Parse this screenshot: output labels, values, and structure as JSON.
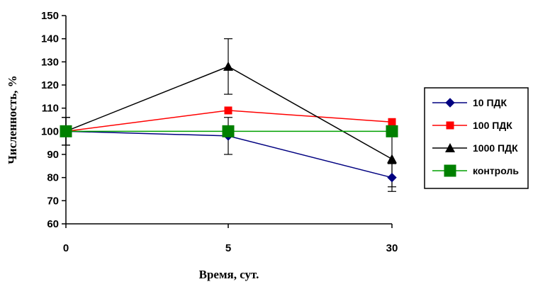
{
  "chart_data": {
    "type": "line",
    "title": "",
    "xlabel": "Время, сут.",
    "ylabel": "Численность, %",
    "categories": [
      "0",
      "5",
      "30"
    ],
    "ylim": [
      60,
      150
    ],
    "yticks": [
      60,
      70,
      80,
      90,
      100,
      110,
      120,
      130,
      140,
      150
    ],
    "grid": false,
    "legend_position": "right",
    "series": [
      {
        "name": "10 ПДК",
        "values": [
          100,
          98,
          80
        ],
        "errors": [
          6,
          8,
          6
        ],
        "color": "#000080",
        "marker": "diamond"
      },
      {
        "name": "100 ПДК",
        "values": [
          100,
          109,
          104
        ],
        "errors": [
          6,
          0,
          0
        ],
        "color": "#ff0000",
        "marker": "square"
      },
      {
        "name": "1000 ПДК",
        "values": [
          100,
          128,
          88
        ],
        "errors": [
          6,
          12,
          12
        ],
        "color": "#000000",
        "marker": "triangle"
      },
      {
        "name": "контроль",
        "values": [
          100,
          100,
          100
        ],
        "errors": [
          0,
          0,
          0
        ],
        "color": "#008000",
        "line_color": "#00a000",
        "marker": "big-square"
      }
    ]
  }
}
